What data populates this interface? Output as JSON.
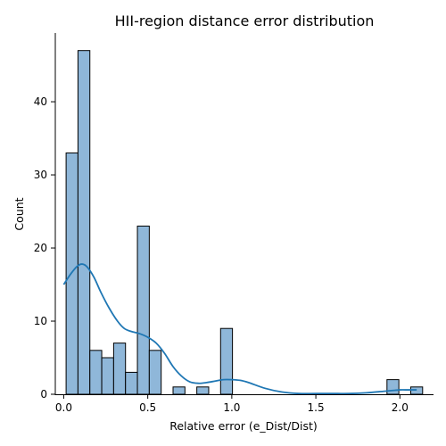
{
  "chart_data": {
    "type": "bar",
    "title": "HII-region distance error distribution",
    "xlabel": "Relative error (e_Dist/Dist)",
    "ylabel": "Count",
    "xlim": [
      -0.05,
      2.2
    ],
    "ylim": [
      0,
      49.4
    ],
    "x_ticks": [
      {
        "value": 0.0,
        "label": "0.0"
      },
      {
        "value": 0.5,
        "label": "0.5"
      },
      {
        "value": 1.0,
        "label": "1.0"
      },
      {
        "value": 1.5,
        "label": "1.5"
      },
      {
        "value": 2.0,
        "label": "2.0"
      }
    ],
    "y_ticks": [
      {
        "value": 0,
        "label": "0"
      },
      {
        "value": 10,
        "label": "10"
      },
      {
        "value": 20,
        "label": "20"
      },
      {
        "value": 30,
        "label": "30"
      },
      {
        "value": 40,
        "label": "40"
      }
    ],
    "bin_start": 0.0142,
    "bin_width": 0.0707,
    "counts": [
      33,
      47,
      6,
      5,
      7,
      3,
      23,
      6,
      0,
      1,
      0,
      1,
      0,
      9,
      0,
      0,
      0,
      0,
      0,
      0,
      0,
      0,
      0,
      0,
      0,
      0,
      0,
      2,
      0,
      1
    ],
    "kde": {
      "x": [
        0.0,
        0.04,
        0.08,
        0.11,
        0.14,
        0.18,
        0.22,
        0.27,
        0.32,
        0.36,
        0.4,
        0.45,
        0.5,
        0.55,
        0.6,
        0.65,
        0.7,
        0.75,
        0.8,
        0.85,
        0.9,
        0.95,
        1.0,
        1.05,
        1.1,
        1.2,
        1.3,
        1.4,
        1.5,
        1.6,
        1.7,
        1.8,
        1.9,
        1.95,
        2.0,
        2.05,
        2.1
      ],
      "y": [
        15.0,
        16.4,
        17.5,
        17.8,
        17.4,
        16.0,
        14.0,
        11.8,
        10.0,
        9.0,
        8.6,
        8.3,
        7.8,
        7.0,
        5.6,
        3.8,
        2.5,
        1.7,
        1.5,
        1.6,
        1.8,
        2.0,
        2.0,
        1.9,
        1.6,
        0.8,
        0.3,
        0.1,
        0.1,
        0.1,
        0.1,
        0.2,
        0.4,
        0.5,
        0.6,
        0.6,
        0.6
      ]
    },
    "grid": false,
    "colors": {
      "bar_fill": "#8fb7d9",
      "bar_edge": "#000000",
      "kde_line": "#1f77b4"
    }
  }
}
